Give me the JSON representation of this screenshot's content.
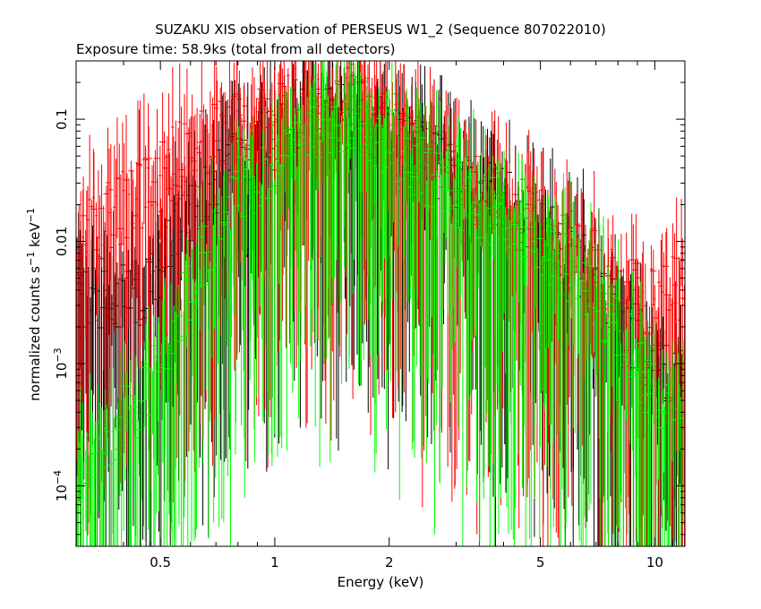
{
  "chart_data": {
    "type": "scatter",
    "title": "SUZAKU XIS observation of PERSEUS W1_2 (Sequence 807022010)",
    "subtitle": "Exposure time: 58.9ks (total from all detectors)",
    "xlabel": "Energy (keV)",
    "ylabel": {
      "main": "normalized counts s",
      "sup1": "−1",
      "mid": " keV",
      "sup2": "−1"
    },
    "xscale": "log",
    "yscale": "log",
    "xlim": [
      0.3,
      12
    ],
    "ylim": [
      3.2e-05,
      0.3
    ],
    "x_ticks": [
      {
        "value": 0.5,
        "label": "0.5"
      },
      {
        "value": 1,
        "label": "1"
      },
      {
        "value": 2,
        "label": "2"
      },
      {
        "value": 5,
        "label": "5"
      },
      {
        "value": 10,
        "label": "10"
      }
    ],
    "y_ticks": [
      {
        "value": 0.1,
        "label": "0.1",
        "base": "",
        "exp": ""
      },
      {
        "value": 0.01,
        "label": "0.01",
        "base": "",
        "exp": ""
      },
      {
        "value": 0.001,
        "label": "",
        "base": "10",
        "exp": "−3"
      },
      {
        "value": 0.0001,
        "label": "",
        "base": "10",
        "exp": "−4"
      }
    ],
    "series": [
      {
        "color": "#000000",
        "envelope": [
          [
            0.3,
            0.007
          ],
          [
            0.45,
            0.008
          ],
          [
            0.6,
            0.035
          ],
          [
            0.8,
            0.1
          ],
          [
            1.2,
            0.2
          ],
          [
            1.6,
            0.22
          ],
          [
            2.2,
            0.12
          ],
          [
            3,
            0.06
          ],
          [
            4,
            0.04
          ],
          [
            5,
            0.025
          ],
          [
            6.5,
            0.012
          ],
          [
            8,
            0.005
          ],
          [
            10,
            0.002
          ],
          [
            12,
            0.0012
          ]
        ]
      },
      {
        "color": "#ff0000",
        "envelope": [
          [
            0.3,
            0.02
          ],
          [
            0.45,
            0.05
          ],
          [
            0.6,
            0.12
          ],
          [
            0.8,
            0.18
          ],
          [
            1.2,
            0.28
          ],
          [
            1.6,
            0.3
          ],
          [
            2.2,
            0.15
          ],
          [
            3,
            0.07
          ],
          [
            4,
            0.04
          ],
          [
            5,
            0.028
          ],
          [
            6.5,
            0.015
          ],
          [
            8,
            0.008
          ],
          [
            10,
            0.006
          ],
          [
            12,
            0.01
          ]
        ]
      },
      {
        "color": "#00ff00",
        "envelope": [
          [
            0.3,
            0.0002
          ],
          [
            0.45,
            0.001
          ],
          [
            0.6,
            0.008
          ],
          [
            0.8,
            0.05
          ],
          [
            1.2,
            0.15
          ],
          [
            1.6,
            0.2
          ],
          [
            2.2,
            0.1
          ],
          [
            3,
            0.05
          ],
          [
            4,
            0.03
          ],
          [
            5,
            0.02
          ],
          [
            6.5,
            0.01
          ],
          [
            8,
            0.004
          ],
          [
            10,
            0.001
          ],
          [
            12,
            0.0006
          ]
        ]
      }
    ]
  }
}
